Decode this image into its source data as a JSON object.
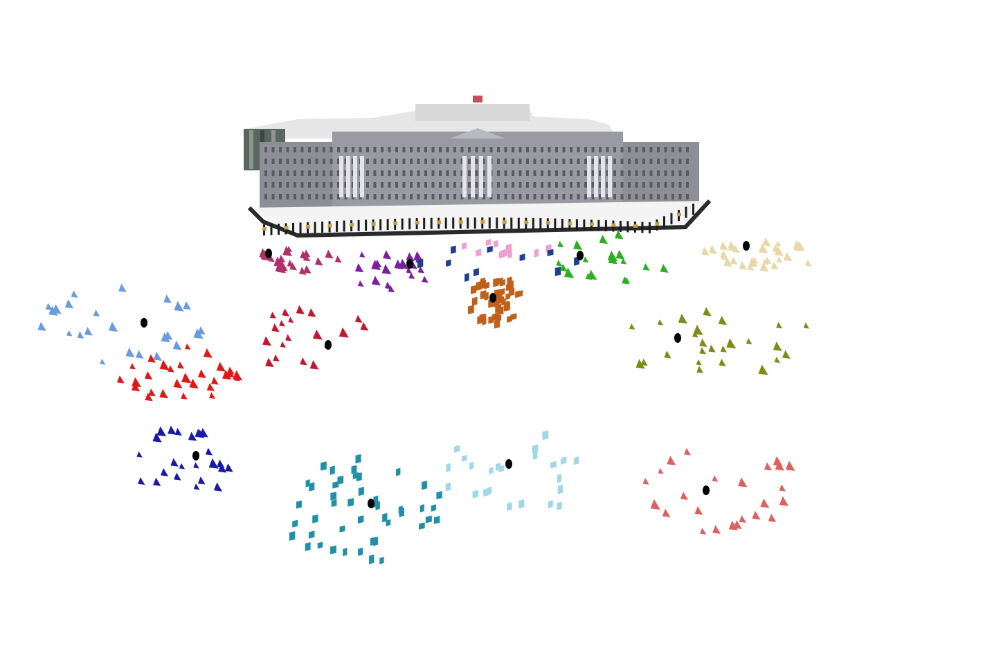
{
  "scene": {
    "subject": "palace-3d-model",
    "background_color": "#ffffff",
    "colors": {
      "magenta": "#b0306a",
      "purple": "#7a1fa0",
      "pink": "#f0a0d0",
      "navy": "#1f3f90",
      "orange": "#c0601a",
      "green": "#2ab020",
      "wheat": "#e8d8a8",
      "skyblue": "#6a9ae0",
      "red": "#e01818",
      "darkred": "#c01830",
      "olive": "#808a18",
      "blue": "#1a1aa8",
      "teal": "#2090a8",
      "lightblue": "#a0d8e8",
      "salmon": "#e06060",
      "center": "#000000"
    },
    "clusters": [
      {
        "name": "magenta",
        "color_key": "magenta",
        "count": 22,
        "center_visible": true
      },
      {
        "name": "purple",
        "color_key": "purple",
        "count": 20,
        "center_visible": true
      },
      {
        "name": "pink",
        "color_key": "pink",
        "count": 10,
        "center_visible": false
      },
      {
        "name": "navy",
        "color_key": "navy",
        "count": 10,
        "center_visible": false
      },
      {
        "name": "orange",
        "color_key": "orange",
        "count": 45,
        "center_visible": true
      },
      {
        "name": "green",
        "color_key": "green",
        "count": 18,
        "center_visible": true
      },
      {
        "name": "wheat",
        "color_key": "wheat",
        "count": 30,
        "center_visible": true
      },
      {
        "name": "skyblue",
        "color_key": "skyblue",
        "count": 24,
        "center_visible": true
      },
      {
        "name": "red",
        "color_key": "red",
        "count": 28,
        "center_visible": false
      },
      {
        "name": "darkred",
        "color_key": "darkred",
        "count": 20,
        "center_visible": true
      },
      {
        "name": "olive",
        "color_key": "olive",
        "count": 26,
        "center_visible": true
      },
      {
        "name": "blue",
        "color_key": "blue",
        "count": 24,
        "center_visible": true
      },
      {
        "name": "teal",
        "color_key": "teal",
        "count": 45,
        "center_visible": true
      },
      {
        "name": "lightblue",
        "color_key": "lightblue",
        "count": 24,
        "center_visible": true
      },
      {
        "name": "salmon",
        "color_key": "salmon",
        "count": 24,
        "center_visible": true
      }
    ]
  }
}
